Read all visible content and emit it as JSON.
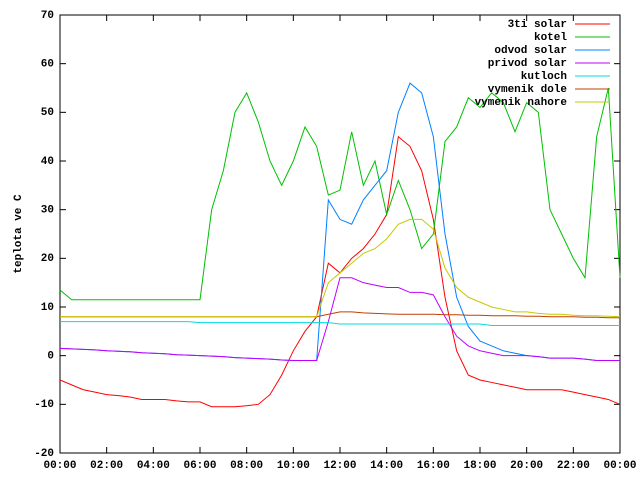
{
  "chart_data": {
    "type": "line",
    "y_label": "teplota ve C",
    "xlim": [
      0,
      24
    ],
    "xticks": [
      {
        "value": 0,
        "label": "00:00"
      },
      {
        "value": 2,
        "label": "02:00"
      },
      {
        "value": 4,
        "label": "04:00"
      },
      {
        "value": 6,
        "label": "06:00"
      },
      {
        "value": 8,
        "label": "08:00"
      },
      {
        "value": 10,
        "label": "10:00"
      },
      {
        "value": 12,
        "label": "12:00"
      },
      {
        "value": 14,
        "label": "14:00"
      },
      {
        "value": 16,
        "label": "16:00"
      },
      {
        "value": 18,
        "label": "18:00"
      },
      {
        "value": 20,
        "label": "20:00"
      },
      {
        "value": 22,
        "label": "22:00"
      },
      {
        "value": 24,
        "label": "00:00"
      }
    ],
    "ylim": [
      -20,
      70
    ],
    "yticks": [
      -20,
      -10,
      0,
      10,
      20,
      30,
      40,
      50,
      60,
      70
    ],
    "legend": "top-right",
    "x": [
      0,
      0.5,
      1,
      1.5,
      2,
      2.5,
      3,
      3.5,
      4,
      4.5,
      5,
      5.5,
      6,
      6.5,
      7,
      7.5,
      8,
      8.5,
      9,
      9.5,
      10,
      10.5,
      11,
      11.5,
      12,
      12.5,
      13,
      13.5,
      14,
      14.5,
      15,
      15.5,
      16,
      16.5,
      17,
      17.5,
      18,
      18.5,
      19,
      19.5,
      20,
      20.5,
      21,
      21.5,
      22,
      22.5,
      23,
      23.5,
      24
    ],
    "series": [
      {
        "name": "3ti solar",
        "color": "#ff0000",
        "values": [
          -5,
          -6,
          -7,
          -7.5,
          -8,
          -8.2,
          -8.5,
          -9,
          -9,
          -9,
          -9.3,
          -9.5,
          -9.5,
          -10.5,
          -10.5,
          -10.5,
          -10.3,
          -10,
          -8,
          -4,
          1,
          5,
          8,
          19,
          17,
          20,
          22,
          25,
          29,
          45,
          43,
          38,
          28,
          12,
          1,
          -4,
          -5,
          -5.5,
          -6,
          -6.5,
          -7,
          -7,
          -7,
          -7,
          -7.5,
          -8,
          -8.5,
          -9,
          -10
        ]
      },
      {
        "name": "kotel",
        "color": "#00c000",
        "values": [
          13.5,
          11.5,
          11.5,
          11.5,
          11.5,
          11.5,
          11.5,
          11.5,
          11.5,
          11.5,
          11.5,
          11.5,
          11.5,
          30,
          38,
          50,
          54,
          48,
          40,
          35,
          40,
          47,
          43,
          33,
          34,
          46,
          35,
          40,
          29,
          36,
          30,
          22,
          25,
          44,
          47,
          53,
          51,
          54,
          52,
          46,
          52,
          50,
          30,
          25,
          20,
          16,
          45,
          55,
          16
        ]
      },
      {
        "name": "odvod solar",
        "color": "#0080ff",
        "values": [
          1.5,
          1.4,
          1.3,
          1.2,
          1,
          0.9,
          0.8,
          0.6,
          0.5,
          0.4,
          0.2,
          0.1,
          0,
          -0.1,
          -0.2,
          -0.4,
          -0.5,
          -0.6,
          -0.7,
          -0.9,
          -1,
          -1,
          -1,
          32,
          28,
          27,
          32,
          35,
          38,
          50,
          56,
          54,
          45,
          25,
          12,
          6,
          3,
          2,
          1,
          0.5,
          0,
          -0.2,
          -0.5,
          -0.5,
          -0.5,
          -0.7,
          -1,
          -1,
          -1
        ]
      },
      {
        "name": "privod solar",
        "color": "#c000ff",
        "values": [
          1.5,
          1.4,
          1.3,
          1.2,
          1,
          0.9,
          0.8,
          0.6,
          0.5,
          0.4,
          0.2,
          0.1,
          0,
          -0.1,
          -0.2,
          -0.4,
          -0.5,
          -0.6,
          -0.7,
          -0.9,
          -1,
          -1,
          -1,
          7,
          16,
          16,
          15,
          14.5,
          14,
          14,
          13,
          13,
          12.5,
          8,
          4,
          2,
          1,
          0.5,
          0,
          0,
          0,
          -0.2,
          -0.5,
          -0.5,
          -0.5,
          -0.7,
          -1,
          -1,
          -1
        ]
      },
      {
        "name": "kutloch",
        "color": "#00dddd",
        "values": [
          7,
          7,
          7,
          7,
          7,
          7,
          7,
          7,
          7,
          7,
          7,
          7,
          6.8,
          6.8,
          6.8,
          6.8,
          6.8,
          6.8,
          6.8,
          6.8,
          6.8,
          6.8,
          6.8,
          6.8,
          6.5,
          6.5,
          6.5,
          6.5,
          6.5,
          6.5,
          6.5,
          6.5,
          6.5,
          6.5,
          6.5,
          6.5,
          6.5,
          6.2,
          6.2,
          6.2,
          6.2,
          6.2,
          6.2,
          6.2,
          6.2,
          6.2,
          6.2,
          6.2,
          6.2
        ]
      },
      {
        "name": "vymenik dole",
        "color": "#c04000",
        "values": [
          8,
          8,
          8,
          8,
          8,
          8,
          8,
          8,
          8,
          8,
          8,
          8,
          8,
          8,
          8,
          8,
          8,
          8,
          8,
          8,
          8,
          8,
          8,
          8.5,
          9,
          9,
          8.8,
          8.7,
          8.6,
          8.5,
          8.5,
          8.5,
          8.5,
          8.4,
          8.4,
          8.3,
          8.3,
          8.2,
          8.2,
          8.2,
          8.1,
          8.1,
          8,
          8,
          8,
          7.9,
          7.9,
          7.8,
          7.8
        ]
      },
      {
        "name": "vymenik nahore",
        "color": "#c8c800",
        "values": [
          8,
          8,
          8,
          8,
          8,
          8,
          8,
          8,
          8,
          8,
          8,
          8,
          8,
          8,
          8,
          8,
          8,
          8,
          8,
          8,
          8,
          8,
          8,
          15,
          17,
          19,
          21,
          22,
          24,
          27,
          28,
          28,
          26,
          18,
          14,
          12,
          11,
          10,
          9.5,
          9,
          9,
          8.7,
          8.5,
          8.5,
          8.3,
          8.2,
          8.2,
          8.1,
          8
        ]
      }
    ]
  }
}
